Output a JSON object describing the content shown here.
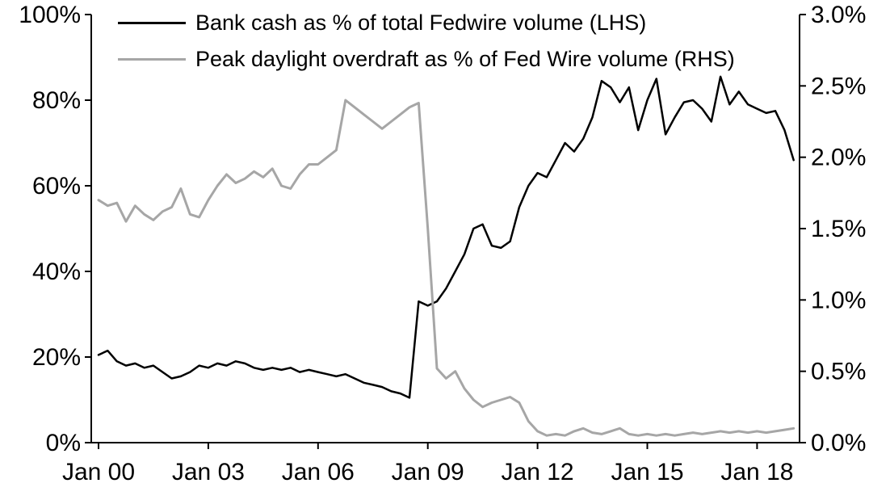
{
  "chart_data": {
    "type": "line",
    "title": "",
    "x_start": 2000.0,
    "x_step": 0.25,
    "x_unit": "year-quarterly",
    "grid": false,
    "legend_position": "top-left",
    "series": [
      {
        "name": "Bank cash as % of total Fedwire volume (LHS)",
        "axis": "left",
        "color": "#000000",
        "line_width": 2.5,
        "values": [
          20.5,
          21.5,
          19,
          18,
          18.5,
          17.5,
          18,
          16.5,
          15,
          15.5,
          16.5,
          18,
          17.5,
          18.5,
          18,
          19,
          18.5,
          17.5,
          17,
          17.5,
          17,
          17.5,
          16.5,
          17,
          16.5,
          16,
          15.5,
          16,
          15,
          14,
          13.5,
          13,
          12,
          11.5,
          10.5,
          33,
          32,
          33,
          36,
          40,
          44,
          50,
          51,
          46,
          45.5,
          47,
          55,
          60,
          63,
          62,
          66,
          70,
          68,
          71,
          76,
          84.5,
          83,
          79.5,
          83,
          73,
          80,
          85,
          72,
          76,
          79.5,
          80,
          78,
          75,
          85.5,
          79,
          82,
          79,
          78,
          77,
          77.5,
          73,
          66
        ]
      },
      {
        "name": "Peak daylight overdraft as % of Fed Wire volume (RHS)",
        "axis": "right",
        "color": "#a6a6a6",
        "line_width": 3,
        "values": [
          1.7,
          1.66,
          1.68,
          1.55,
          1.66,
          1.6,
          1.56,
          1.62,
          1.65,
          1.78,
          1.6,
          1.58,
          1.7,
          1.8,
          1.88,
          1.82,
          1.85,
          1.9,
          1.86,
          1.92,
          1.8,
          1.78,
          1.88,
          1.95,
          1.95,
          2.0,
          2.05,
          2.4,
          2.35,
          2.3,
          2.25,
          2.2,
          2.25,
          2.3,
          2.35,
          2.38,
          1.5,
          0.52,
          0.45,
          0.5,
          0.38,
          0.3,
          0.25,
          0.28,
          0.3,
          0.32,
          0.28,
          0.15,
          0.08,
          0.05,
          0.06,
          0.05,
          0.08,
          0.1,
          0.07,
          0.06,
          0.08,
          0.1,
          0.06,
          0.05,
          0.06,
          0.05,
          0.06,
          0.05,
          0.06,
          0.07,
          0.06,
          0.07,
          0.08,
          0.07,
          0.08,
          0.07,
          0.08,
          0.07,
          0.08,
          0.09,
          0.1
        ]
      }
    ],
    "left_axis": {
      "min": 0,
      "max": 100,
      "tick_values": [
        0,
        20,
        40,
        60,
        80,
        100
      ],
      "tick_labels": [
        "0%",
        "20%",
        "40%",
        "60%",
        "80%",
        "100%"
      ]
    },
    "right_axis": {
      "min": 0,
      "max": 3,
      "tick_values": [
        0,
        0.5,
        1,
        1.5,
        2,
        2.5,
        3
      ],
      "tick_labels": [
        "0.0%",
        "0.5%",
        "1.0%",
        "1.5%",
        "2.0%",
        "2.5%",
        "3.0%"
      ]
    },
    "x_axis": {
      "tick_years": [
        2000,
        2003,
        2006,
        2009,
        2012,
        2015,
        2018
      ],
      "tick_labels": [
        "Jan 00",
        "Jan 03",
        "Jan 06",
        "Jan 09",
        "Jan 12",
        "Jan 15",
        "Jan 18"
      ]
    }
  }
}
